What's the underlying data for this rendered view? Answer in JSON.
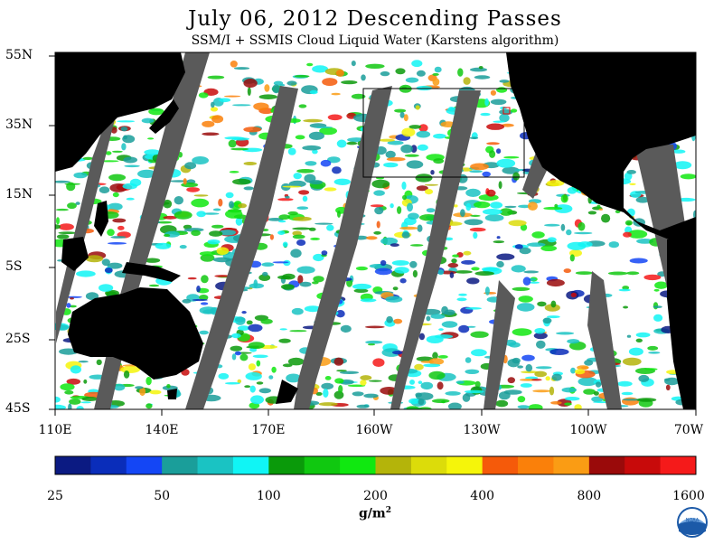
{
  "title": "July 06, 2012  Descending Passes",
  "subtitle": "SSM/I + SSMIS Cloud Liquid Water (Karstens algorithm)",
  "latitude_labels": [
    "55N",
    "35N",
    "15N",
    "5S",
    "25S",
    "45S"
  ],
  "longitude_labels": [
    "110E",
    "140E",
    "170E",
    "160W",
    "130W",
    "100W",
    "70W"
  ],
  "colorbar": {
    "tick_labels": [
      "25",
      "50",
      "100",
      "200",
      "400",
      "800",
      "1600"
    ],
    "units": "g/m",
    "units_exp": "2",
    "colors": [
      "#0b1a82",
      "#0a2dba",
      "#1446f5",
      "#1a9e9a",
      "#1ac3c3",
      "#10f5f5",
      "#0a9a0a",
      "#10c810",
      "#10e810",
      "#b4b40a",
      "#dcdc0a",
      "#f5f50a",
      "#f55a0a",
      "#fa800a",
      "#fa9c14",
      "#9a0a0a",
      "#c80a0a",
      "#f51a1a"
    ]
  },
  "colors": {
    "land": "#000000",
    "no_data": "#5a5a5a",
    "background": "#ffffff"
  },
  "logo": {
    "name": "noaa-logo",
    "left_letters": [
      "E",
      "S",
      "R",
      "L"
    ],
    "right_letters": [
      "P",
      "S",
      "D"
    ],
    "center_text": "NOAA"
  }
}
